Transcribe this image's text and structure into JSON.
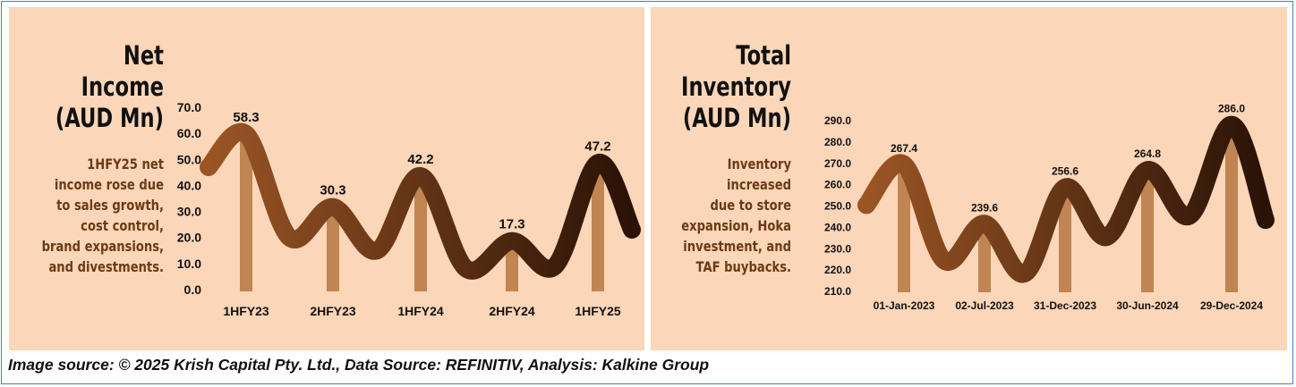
{
  "footer": "Image source: © 2025 Krish Capital Pty. Ltd., Data Source: REFINITIV, Analysis: Kalkine Group",
  "colors": {
    "panel_bg": "#fbd6b8",
    "bar": "#c08552",
    "curve_start": "#9b5525",
    "curve_end": "#2a1206",
    "desc_text": "#6b3a16"
  },
  "chart_data": [
    {
      "type": "bar",
      "title_lines": [
        "Net",
        "Income",
        "(AUD Mn)"
      ],
      "description_lines": [
        "1HFY25 net",
        "income rose due",
        "to sales growth,",
        "cost control,",
        "brand expansions,",
        "and divestments."
      ],
      "categories": [
        "1HFY23",
        "2HFY23",
        "1HFY24",
        "2HFY24",
        "1HFY25"
      ],
      "values": [
        58.3,
        30.3,
        42.2,
        17.3,
        47.2
      ],
      "value_labels": [
        "58.3",
        "30.3",
        "42.2",
        "17.3",
        "47.2"
      ],
      "yticks": [
        "0.0",
        "10.0",
        "20.0",
        "30.0",
        "40.0",
        "50.0",
        "60.0",
        "70.0"
      ],
      "ylim": [
        0,
        70
      ],
      "grid": false
    },
    {
      "type": "bar",
      "title_lines": [
        "Total",
        "Inventory",
        "(AUD Mn)"
      ],
      "description_lines": [
        "Inventory",
        "increased",
        "due to store",
        "expansion, Hoka",
        "investment, and",
        "TAF buybacks."
      ],
      "categories": [
        "01-Jan-2023",
        "02-Jul-2023",
        "31-Dec-2023",
        "30-Jun-2024",
        "29-Dec-2024"
      ],
      "values": [
        267.4,
        239.6,
        256.6,
        264.8,
        286.0
      ],
      "value_labels": [
        "267.4",
        "239.6",
        "256.6",
        "264.8",
        "286.0"
      ],
      "yticks": [
        "210.0",
        "220.0",
        "230.0",
        "240.0",
        "250.0",
        "260.0",
        "270.0",
        "280.0",
        "290.0"
      ],
      "ylim": [
        210,
        290
      ],
      "grid": false
    }
  ]
}
